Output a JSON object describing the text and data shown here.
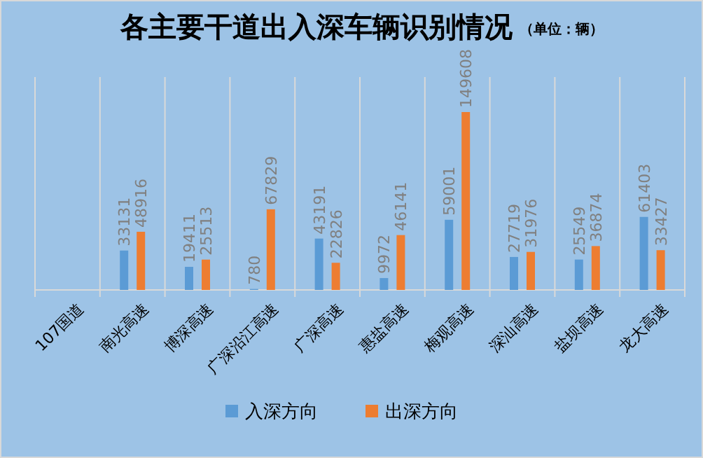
{
  "chart_data": {
    "type": "bar",
    "title": "各主要干道出入深车辆识别情况",
    "subtitle": "（单位：辆）",
    "categories": [
      "107国道",
      "南光高速",
      "博深高速",
      "广深沿江高速",
      "广深高速",
      "惠盐高速",
      "梅观高速",
      "深汕高速",
      "盐坝高速",
      "龙大高速"
    ],
    "series": [
      {
        "name": "入深方向",
        "color": "#5b9bd5",
        "values": [
          null,
          33131,
          19411,
          780,
          43191,
          9972,
          59001,
          27719,
          25549,
          61403
        ]
      },
      {
        "name": "出深方向",
        "color": "#ed7d31",
        "values": [
          null,
          48916,
          25513,
          67829,
          22826,
          46141,
          149608,
          31976,
          36874,
          33427
        ]
      }
    ],
    "data_labels": true,
    "grid": "x",
    "legend": "bottom"
  }
}
